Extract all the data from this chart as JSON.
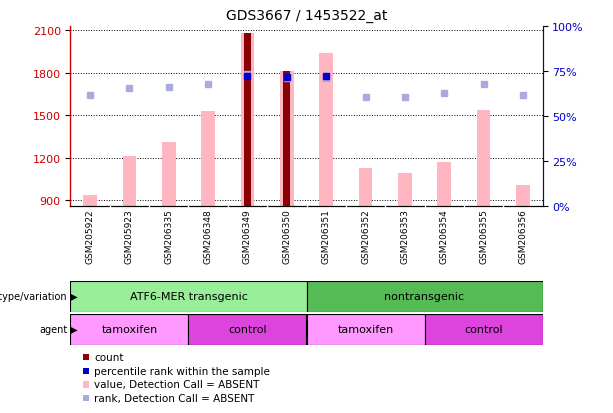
{
  "title": "GDS3667 / 1453522_at",
  "samples": [
    "GSM205922",
    "GSM205923",
    "GSM206335",
    "GSM206348",
    "GSM206349",
    "GSM206350",
    "GSM206351",
    "GSM206352",
    "GSM206353",
    "GSM206354",
    "GSM206355",
    "GSM206356"
  ],
  "ylim_left": [
    860,
    2130
  ],
  "ylim_right": [
    0,
    100
  ],
  "yticks_left": [
    900,
    1200,
    1500,
    1800,
    2100
  ],
  "yticks_right": [
    0,
    25,
    50,
    75,
    100
  ],
  "bar_values_pink": [
    940,
    1210,
    1310,
    1530,
    2080,
    1810,
    1940,
    1130,
    1090,
    1170,
    1540,
    1010
  ],
  "bar_values_dark_red": [
    null,
    null,
    null,
    null,
    2080,
    1810,
    null,
    null,
    null,
    null,
    null,
    null
  ],
  "dot_values_rank": [
    1640,
    1690,
    1700,
    1720,
    1790,
    1760,
    1760,
    1630,
    1630,
    1660,
    1720,
    1640
  ],
  "dot_values_blue": [
    null,
    null,
    null,
    null,
    1780,
    1770,
    1780,
    null,
    null,
    null,
    null,
    null
  ],
  "bar_color_pink": "#FFB6C1",
  "bar_color_dark_red": "#8B0000",
  "dot_color_light_blue": "#AAAADD",
  "dot_color_blue": "#0000CC",
  "background_color": "#FFFFFF",
  "left_axis_color": "#CC0000",
  "right_axis_color": "#0000CC",
  "genotype_groups": [
    {
      "label": "ATF6-MER transgenic",
      "start": 0,
      "end": 5,
      "color": "#99EE99"
    },
    {
      "label": "nontransgenic",
      "start": 6,
      "end": 11,
      "color": "#55BB55"
    }
  ],
  "agent_groups": [
    {
      "label": "tamoxifen",
      "start": 0,
      "end": 2,
      "color": "#FF99FF"
    },
    {
      "label": "control",
      "start": 3,
      "end": 5,
      "color": "#DD44DD"
    },
    {
      "label": "tamoxifen",
      "start": 6,
      "end": 8,
      "color": "#FF99FF"
    },
    {
      "label": "control",
      "start": 9,
      "end": 11,
      "color": "#DD44DD"
    }
  ],
  "legend_items": [
    {
      "label": "count",
      "color": "#8B0000"
    },
    {
      "label": "percentile rank within the sample",
      "color": "#0000CC"
    },
    {
      "label": "value, Detection Call = ABSENT",
      "color": "#FFB6C1"
    },
    {
      "label": "rank, Detection Call = ABSENT",
      "color": "#AAAADD"
    }
  ],
  "col_bg_color": "#CCCCCC",
  "col_border_color": "#FFFFFF"
}
